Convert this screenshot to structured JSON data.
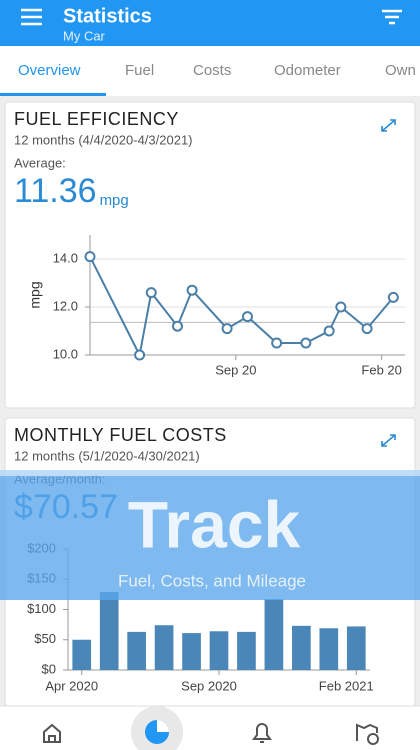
{
  "header": {
    "title": "Statistics",
    "subtitle": "My Car"
  },
  "tabs": [
    "Overview",
    "Fuel",
    "Costs",
    "Odometer",
    "Own"
  ],
  "cards": [
    {
      "title": "FUEL EFFICIENCY",
      "period": "12 months (4/4/2020-4/3/2021)",
      "average_label": "Average:",
      "average_value": 11.36,
      "average_unit": "mpg",
      "chart_data": {
        "type": "line",
        "ylabel": "mpg",
        "x": [
          4.0,
          5.7,
          6.1,
          7.0,
          7.5,
          8.7,
          9.4,
          10.4,
          11.4,
          12.2,
          12.6,
          13.5,
          14.4
        ],
        "series": [
          {
            "color": "#4a7fa8",
            "values": [
              14.1,
              10.0,
              12.6,
              11.2,
              12.7,
              11.1,
              11.6,
              10.5,
              10.5,
              11.0,
              12.0,
              11.1,
              12.4
            ]
          }
        ],
        "xlim": [
          4.0,
          14.8
        ],
        "xticks": [
          {
            "value": 9,
            "label": "Sep 20"
          },
          {
            "value": 14,
            "label": "Feb 20"
          }
        ],
        "ylim": [
          10,
          15
        ],
        "yticks": [
          {
            "value": 10,
            "label": "10.0"
          },
          {
            "value": 12,
            "label": "12.0"
          },
          {
            "value": 14,
            "label": "14.0"
          }
        ],
        "grid": true
      }
    },
    {
      "title": "MONTHLY FUEL COSTS",
      "period": "12 months (5/1/2020-4/30/2021)",
      "average_label": "Average/month:",
      "average_value": "$70.57",
      "chart_data": {
        "type": "bar",
        "categories": [
          "Apr 2020",
          null,
          null,
          null,
          null,
          "Sep 2020",
          null,
          null,
          null,
          null,
          "Feb 2021"
        ],
        "values": [
          50,
          129,
          63,
          74,
          61,
          64,
          63,
          117,
          73,
          69,
          72
        ],
        "color": "#4a86b8",
        "ylim": [
          0,
          200
        ],
        "yticks": [
          {
            "value": 0,
            "label": "$0"
          },
          {
            "value": 50,
            "label": "$50"
          },
          {
            "value": 100,
            "label": "$100"
          },
          {
            "value": 150,
            "label": "$150"
          },
          {
            "value": 200,
            "label": "$200"
          }
        ],
        "grid": false
      }
    }
  ],
  "banner": {
    "title": "Track",
    "subtitle": "Fuel, Costs, and Mileage"
  }
}
